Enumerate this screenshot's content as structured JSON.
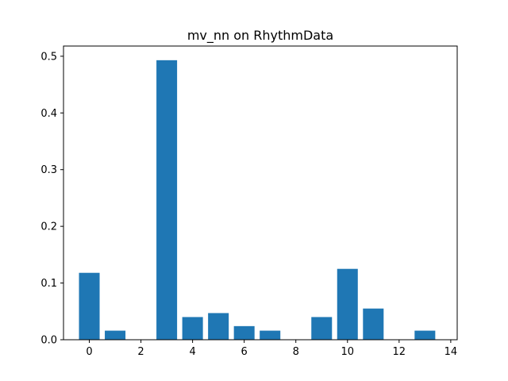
{
  "chart_data": {
    "type": "bar",
    "title": "mv_nn on RhythmData",
    "xlabel": "",
    "ylabel": "",
    "x": [
      0,
      1,
      2,
      3,
      4,
      5,
      6,
      7,
      8,
      9,
      10,
      11,
      12,
      13
    ],
    "values": [
      0.118,
      0.016,
      0.0,
      0.493,
      0.04,
      0.047,
      0.024,
      0.016,
      0.0,
      0.04,
      0.125,
      0.055,
      0.0,
      0.016
    ],
    "bar_width": 0.8,
    "xlim": [
      -1.0,
      14.25
    ],
    "ylim": [
      0,
      0.518
    ],
    "xticks": [
      0,
      2,
      4,
      6,
      8,
      10,
      12,
      14
    ],
    "xtick_labels": [
      "0",
      "2",
      "4",
      "6",
      "8",
      "10",
      "12",
      "14"
    ],
    "yticks": [
      0.0,
      0.1,
      0.2,
      0.3,
      0.4,
      0.5
    ],
    "ytick_labels": [
      "0.0",
      "0.1",
      "0.2",
      "0.3",
      "0.4",
      "0.5"
    ],
    "bar_color": "#1f77b4",
    "grid": false,
    "legend": "none"
  }
}
